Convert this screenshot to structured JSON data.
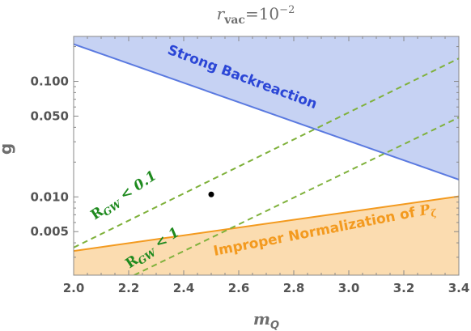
{
  "chart_data": {
    "type": "region",
    "title": {
      "base": "r",
      "sub": "vac",
      "eq": "=10",
      "sup": "−2"
    },
    "xlabel": {
      "base": "m",
      "sub": "Q"
    },
    "ylabel": "g",
    "xlim": [
      2.0,
      3.4
    ],
    "ylim": [
      0.0021,
      0.245
    ],
    "yscale": "log",
    "xticks": [
      {
        "value": 2.0,
        "label": "2.0"
      },
      {
        "value": 2.2,
        "label": "2.2"
      },
      {
        "value": 2.4,
        "label": "2.4"
      },
      {
        "value": 2.6,
        "label": "2.6"
      },
      {
        "value": 2.8,
        "label": "2.8"
      },
      {
        "value": 3.0,
        "label": "3.0"
      },
      {
        "value": 3.2,
        "label": "3.2"
      },
      {
        "value": 3.4,
        "label": "3.4"
      }
    ],
    "yticks": [
      {
        "value": 0.1,
        "label": "0.100"
      },
      {
        "value": 0.05,
        "label": "0.050"
      },
      {
        "value": 0.01,
        "label": "0.010"
      },
      {
        "value": 0.005,
        "label": "0.005"
      }
    ],
    "ytick_minor": [
      0.003,
      0.004,
      0.006,
      0.007,
      0.008,
      0.009,
      0.02,
      0.03,
      0.04,
      0.06,
      0.07,
      0.08,
      0.09,
      0.2
    ],
    "grid": false,
    "regions": [
      {
        "name": "Strong Backreaction",
        "fill": "#c6d2f3",
        "edge": "#5b7ae0",
        "boundary": [
          [
            2.0,
            0.21
          ],
          [
            3.4,
            0.0141
          ]
        ],
        "side": "above"
      },
      {
        "name": "Improper Normalization of P_ζ",
        "fill": "#fbdcb0",
        "edge": "#f39a1f",
        "boundary": [
          [
            2.0,
            0.0034
          ],
          [
            3.4,
            0.0101
          ]
        ],
        "side": "below"
      }
    ],
    "lines": [
      {
        "name": "R_GW < 0.1",
        "style": "dashed",
        "color": "#7fb13b",
        "points": [
          [
            2.0,
            0.00364
          ],
          [
            3.4,
            0.158
          ]
        ]
      },
      {
        "name": "R_GW < 1",
        "style": "dashed",
        "color": "#7fb13b",
        "points": [
          [
            2.22,
            0.0021
          ],
          [
            3.4,
            0.0487
          ]
        ]
      }
    ],
    "points": [
      {
        "x": 2.5,
        "y": 0.0105,
        "color": "#000000"
      }
    ],
    "labels": {
      "strong": "Strong Backreaction",
      "improper": "Improper Normalization of ",
      "improper_sym": "P",
      "improper_sub": "ζ",
      "rgw01": {
        "base": "R",
        "sub": "GW",
        "rest": " < 0.1"
      },
      "rgw1": {
        "base": "R",
        "sub": "GW",
        "rest": " < 1"
      }
    },
    "colors": {
      "strong_text": "#2b46d6",
      "improper_text": "#f39a1f",
      "rgw_text": "#1e8a1e"
    }
  }
}
